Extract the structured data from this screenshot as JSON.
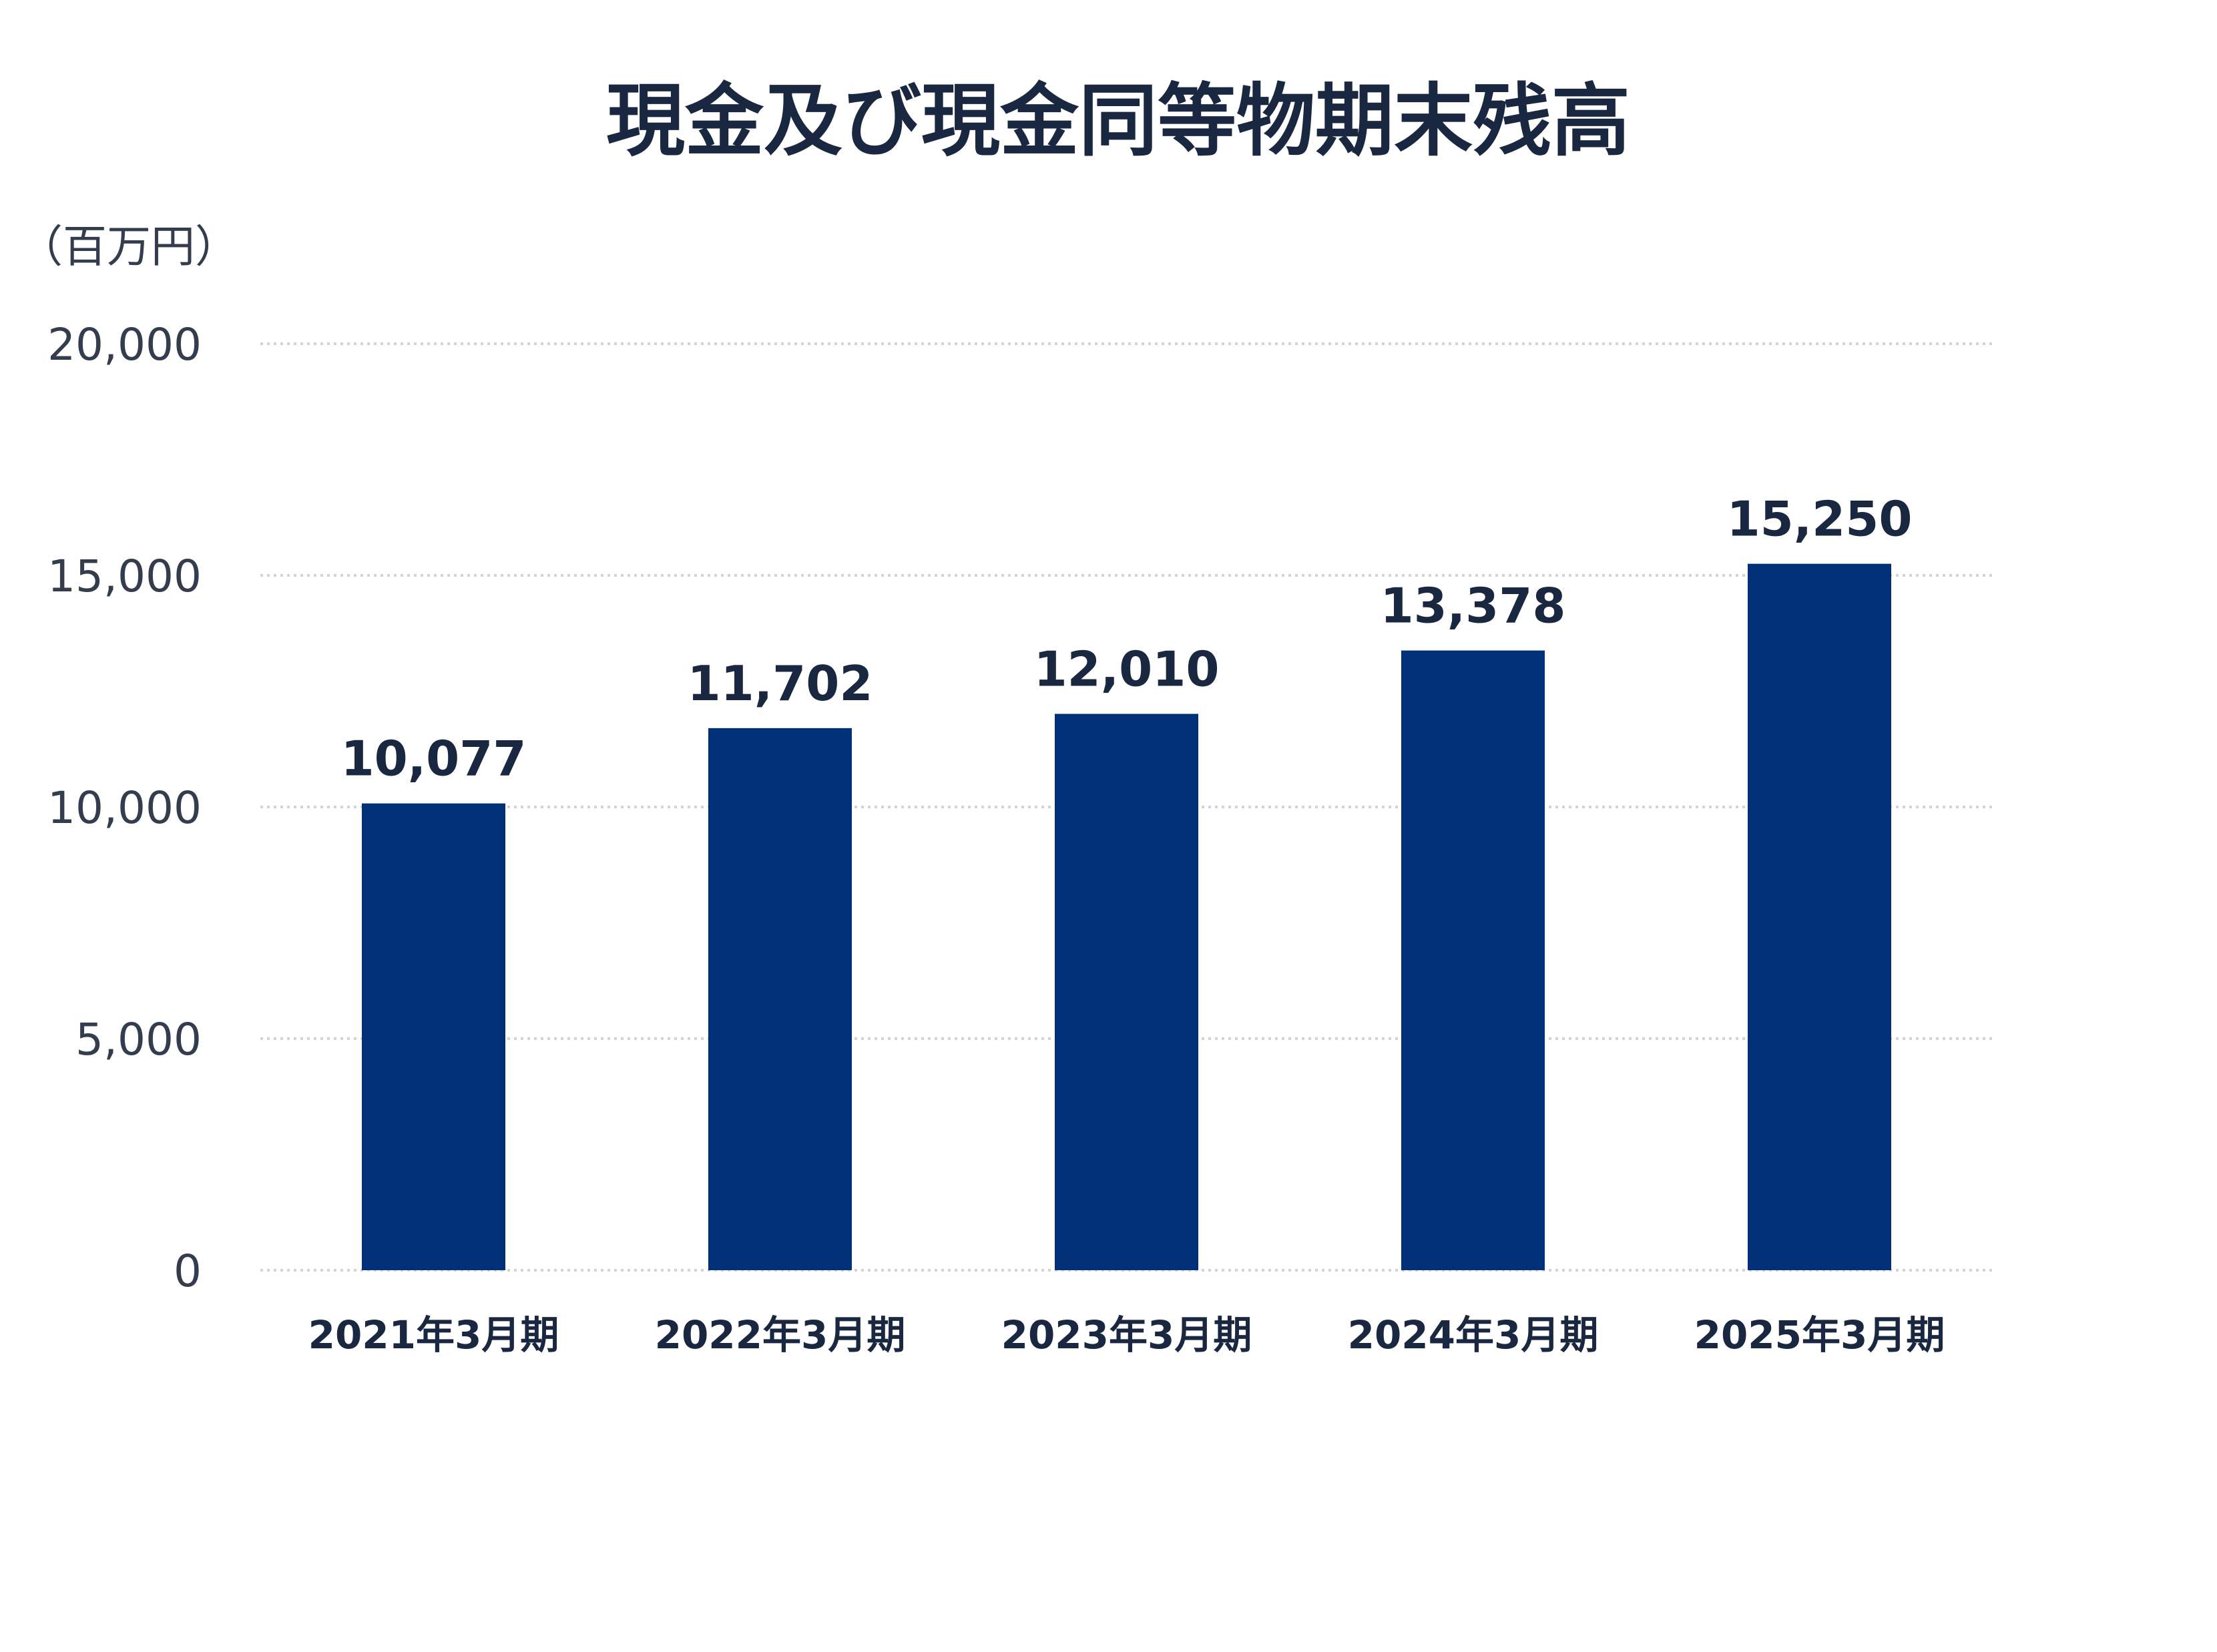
{
  "chart_data": {
    "type": "bar",
    "title": "現金及び現金同等物期末残高",
    "unit_label": "（百万円）",
    "categories": [
      "2021年3月期",
      "2022年3月期",
      "2023年3月期",
      "2024年3月期",
      "2025年3月期"
    ],
    "values": [
      10077,
      11702,
      12010,
      13378,
      15250
    ],
    "value_labels": [
      "10,077",
      "11,702",
      "12,010",
      "13,378",
      "15,250"
    ],
    "ylim": [
      0,
      20000
    ],
    "yticks": [
      0,
      5000,
      10000,
      15000,
      20000
    ],
    "ytick_labels": [
      "0",
      "5,000",
      "10,000",
      "15,000",
      "20,000"
    ],
    "grid": true,
    "legend": "none",
    "colors": {
      "bar": "#003078",
      "text": "#1a2740",
      "axis_text": "#333d4d",
      "grid": "#d4d4d4"
    }
  }
}
